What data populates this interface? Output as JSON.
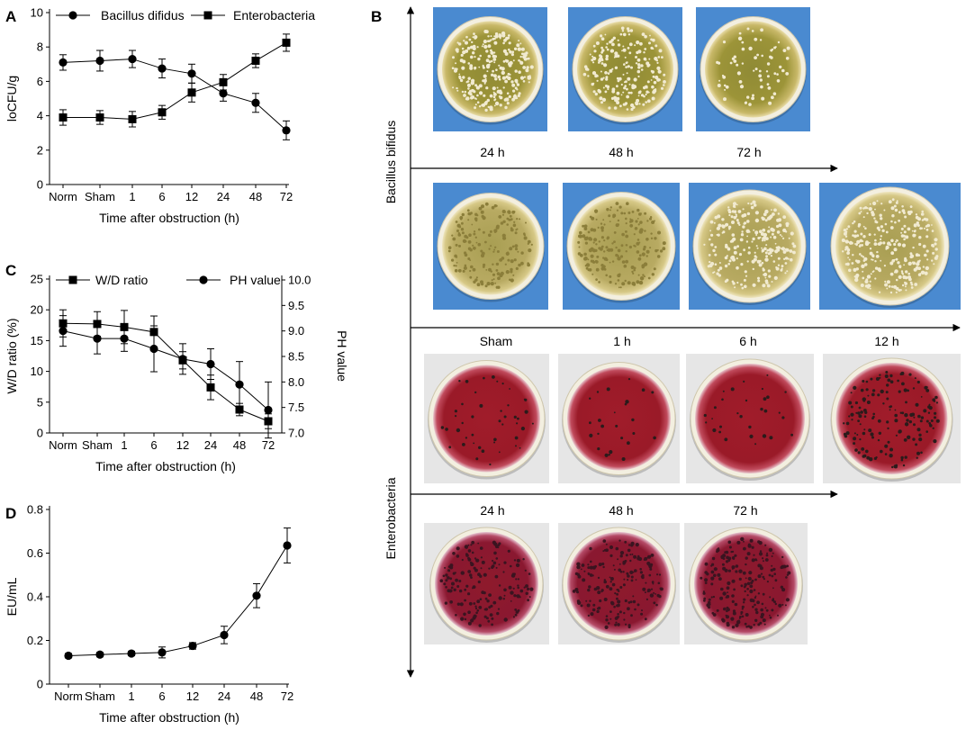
{
  "panels": {
    "A": "A",
    "B": "B",
    "C": "C",
    "D": "D"
  },
  "colors": {
    "ink": "#000000",
    "agar_yellow": "#a69a3a",
    "agar_red": "#a3202e",
    "plate_bg_blue": "#4a8ad0",
    "plate_bg_gray": "#e6e6e6"
  },
  "chart_data": [
    {
      "id": "A",
      "type": "line",
      "categories": [
        "Norm",
        "Sham",
        "1",
        "6",
        "12",
        "24",
        "48",
        "72"
      ],
      "xlabel": "Time after obstruction (h)",
      "ylabel": "loCFU/g",
      "ylim": [
        0,
        10
      ],
      "yticks": [
        0,
        2,
        4,
        6,
        8,
        10
      ],
      "legend_position": "top",
      "series": [
        {
          "name": "Bacillus difidus",
          "marker": "circle",
          "values": [
            7.1,
            7.2,
            7.3,
            6.75,
            6.45,
            5.3,
            4.75,
            3.15
          ],
          "errors": [
            0.45,
            0.6,
            0.5,
            0.55,
            0.55,
            0.45,
            0.55,
            0.55
          ]
        },
        {
          "name": "Enterobacteria",
          "marker": "square",
          "values": [
            3.9,
            3.9,
            3.8,
            4.2,
            5.35,
            5.95,
            7.2,
            8.25
          ],
          "errors": [
            0.45,
            0.4,
            0.45,
            0.4,
            0.55,
            0.45,
            0.4,
            0.5
          ]
        }
      ]
    },
    {
      "id": "C",
      "type": "line",
      "categories": [
        "Norm",
        "Sham",
        "1",
        "6",
        "12",
        "24",
        "48",
        "72"
      ],
      "xlabel": "Time after obstruction (h)",
      "ylabel": "W/D ratio (%)",
      "ylabel2": "PH value",
      "ylim": [
        0,
        25
      ],
      "yticks": [
        0,
        5,
        10,
        15,
        20,
        25
      ],
      "ylim2": [
        7.0,
        10.0
      ],
      "yticks2": [
        "7.0",
        "7.5",
        "8.0",
        "8.5",
        "9.0",
        "9.5",
        "10.0"
      ],
      "legend_position": "top",
      "series": [
        {
          "name": "W/D ratio",
          "marker": "square",
          "axis": "left",
          "values": [
            17.8,
            17.7,
            17.2,
            16.4,
            11.8,
            7.4,
            3.8,
            1.9
          ],
          "errors": [
            2.2,
            2.0,
            2.7,
            2.6,
            1.4,
            2.0,
            1.0,
            1.2
          ]
        },
        {
          "name": "PH value",
          "marker": "circle",
          "axis": "right",
          "values": [
            9.0,
            8.85,
            8.85,
            8.65,
            8.45,
            8.35,
            7.95,
            7.45
          ],
          "errors": [
            0.3,
            0.3,
            0.25,
            0.45,
            0.3,
            0.3,
            0.45,
            0.55
          ]
        }
      ]
    },
    {
      "id": "D",
      "type": "line",
      "categories": [
        "Norm",
        "Sham",
        "1",
        "6",
        "12",
        "24",
        "48",
        "72"
      ],
      "xlabel": "Time after obstruction (h)",
      "ylabel": "EU/mL",
      "ylim": [
        0,
        0.8
      ],
      "yticks": [
        "0",
        "0.2",
        "0.4",
        "0.6",
        "0.8"
      ],
      "series": [
        {
          "marker": "circle",
          "values": [
            0.13,
            0.135,
            0.14,
            0.145,
            0.175,
            0.225,
            0.405,
            0.635
          ],
          "errors": [
            0.01,
            0.01,
            0.01,
            0.025,
            0.015,
            0.04,
            0.055,
            0.08
          ]
        }
      ]
    }
  ],
  "panel_b": {
    "group_labels": [
      "Bacillus bifidus",
      "Enterobacteria"
    ],
    "bifidus_row1_labels": [
      "24 h",
      "48 h",
      "72 h"
    ],
    "bifidus_row2_labels": [
      "Sham",
      "1 h",
      "6 h",
      "12 h"
    ],
    "entero_row1_labels": [
      "24 h",
      "48 h",
      "72 h"
    ],
    "plates_bifidus_row1": [
      "plate-bifidus-norm",
      "plate-bifidus-sham",
      "plate-bifidus-1h"
    ],
    "plates_bifidus_row2": [
      "plate-bifidus-6h",
      "plate-bifidus-12h",
      "plate-bifidus-24h",
      "plate-bifidus-48h"
    ],
    "plates_entero_row1": [
      "plate-entero-norm",
      "plate-entero-sham",
      "plate-entero-1h",
      "plate-entero-6h"
    ],
    "plates_entero_row2": [
      "plate-entero-12h",
      "plate-entero-24h",
      "plate-entero-48h"
    ]
  }
}
